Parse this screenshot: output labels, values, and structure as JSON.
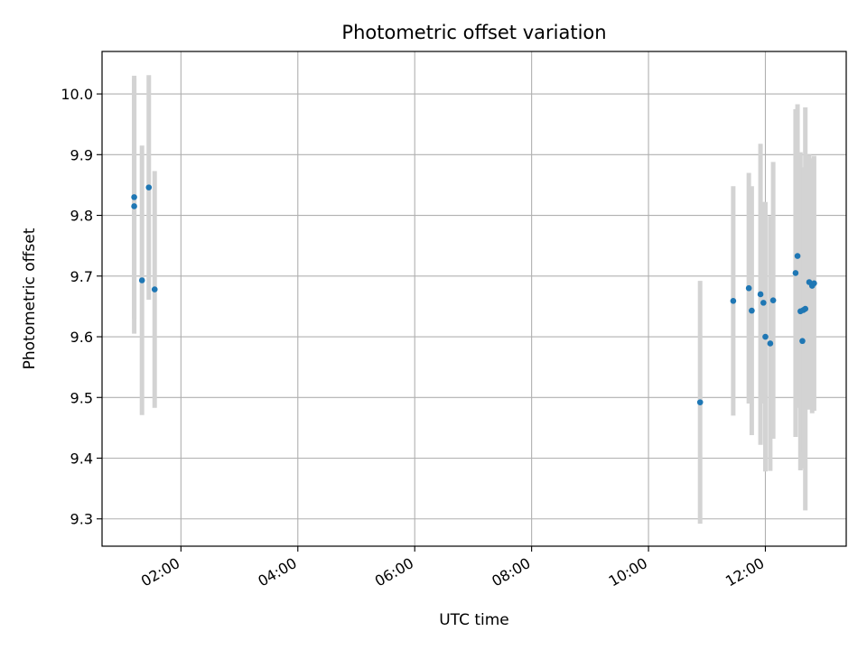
{
  "chart_data": {
    "type": "scatter",
    "title": "Photometric offset variation",
    "xlabel": "UTC time",
    "ylabel": "Photometric offset",
    "x_axis_type": "time",
    "xlim": [
      "00:39",
      "13:23"
    ],
    "ylim": [
      9.255,
      10.07
    ],
    "x_ticks": [
      "02:00",
      "04:00",
      "06:00",
      "08:00",
      "10:00",
      "12:00"
    ],
    "y_ticks": [
      "9.3",
      "9.4",
      "9.5",
      "9.6",
      "9.7",
      "9.8",
      "9.9",
      "10.0"
    ],
    "grid": true,
    "legend": "none",
    "colors": {
      "marker": "#1f77b4",
      "errorbar": "#d3d3d3",
      "grid": "#b0b0b0"
    },
    "points": [
      {
        "x": "01:12",
        "y": 9.815,
        "yerr": 0.21
      },
      {
        "x": "01:12",
        "y": 9.83,
        "yerr": 0.2
      },
      {
        "x": "01:20",
        "y": 9.693,
        "yerr": 0.222
      },
      {
        "x": "01:27",
        "y": 9.846,
        "yerr": 0.185
      },
      {
        "x": "01:33",
        "y": 9.678,
        "yerr": 0.195
      },
      {
        "x": "10:53",
        "y": 9.492,
        "yerr": 0.2
      },
      {
        "x": "11:27",
        "y": 9.659,
        "yerr": 0.189
      },
      {
        "x": "11:43",
        "y": 9.68,
        "yerr": 0.19
      },
      {
        "x": "11:46",
        "y": 9.643,
        "yerr": 0.205
      },
      {
        "x": "11:55",
        "y": 9.67,
        "yerr": 0.248
      },
      {
        "x": "11:58",
        "y": 9.656,
        "yerr": 0.166
      },
      {
        "x": "12:00",
        "y": 9.6,
        "yerr": 0.222
      },
      {
        "x": "12:05",
        "y": 9.589,
        "yerr": 0.21
      },
      {
        "x": "12:08",
        "y": 9.66,
        "yerr": 0.228
      },
      {
        "x": "12:31",
        "y": 9.705,
        "yerr": 0.27
      },
      {
        "x": "12:33",
        "y": 9.733,
        "yerr": 0.25
      },
      {
        "x": "12:36",
        "y": 9.642,
        "yerr": 0.262
      },
      {
        "x": "12:38",
        "y": 9.593,
        "yerr": 0.21
      },
      {
        "x": "12:39",
        "y": 9.644,
        "yerr": 0.235
      },
      {
        "x": "12:41",
        "y": 9.646,
        "yerr": 0.332
      },
      {
        "x": "12:45",
        "y": 9.69,
        "yerr": 0.21
      },
      {
        "x": "12:48",
        "y": 9.684,
        "yerr": 0.21
      },
      {
        "x": "12:50",
        "y": 9.688,
        "yerr": 0.21
      }
    ]
  }
}
